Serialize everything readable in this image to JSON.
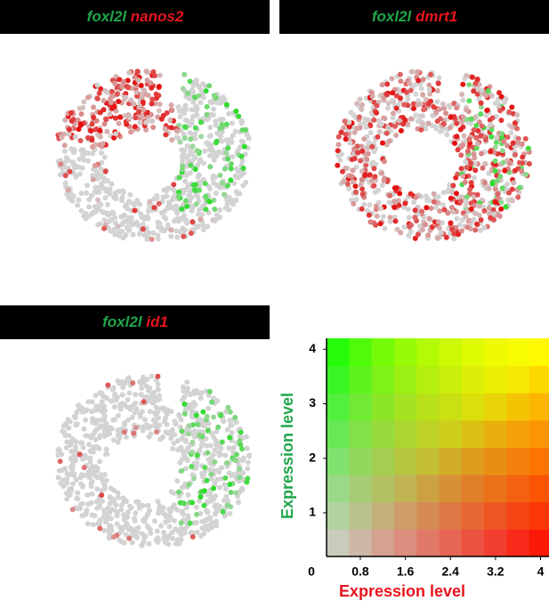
{
  "panels": [
    {
      "title_green": "foxl2l",
      "title_red": "nanos2"
    },
    {
      "title_green": "foxl2l",
      "title_red": "dmrt1"
    },
    {
      "title_green": "foxl2l",
      "title_red": "id1"
    }
  ],
  "chart_data": {
    "type": "heatmap",
    "xlabel": "Expression level",
    "ylabel": "Expression level",
    "origin_label": "0",
    "xlim": [
      0.2,
      4.15
    ],
    "ylim": [
      0.2,
      4.2
    ],
    "xticks": [
      0.8,
      1.6,
      2.4,
      3.2,
      4
    ],
    "yticks": [
      1,
      2,
      3,
      4
    ],
    "low_color": "#d3d3d3",
    "x_color": "#ff0000",
    "y_color": "#00ff00"
  }
}
